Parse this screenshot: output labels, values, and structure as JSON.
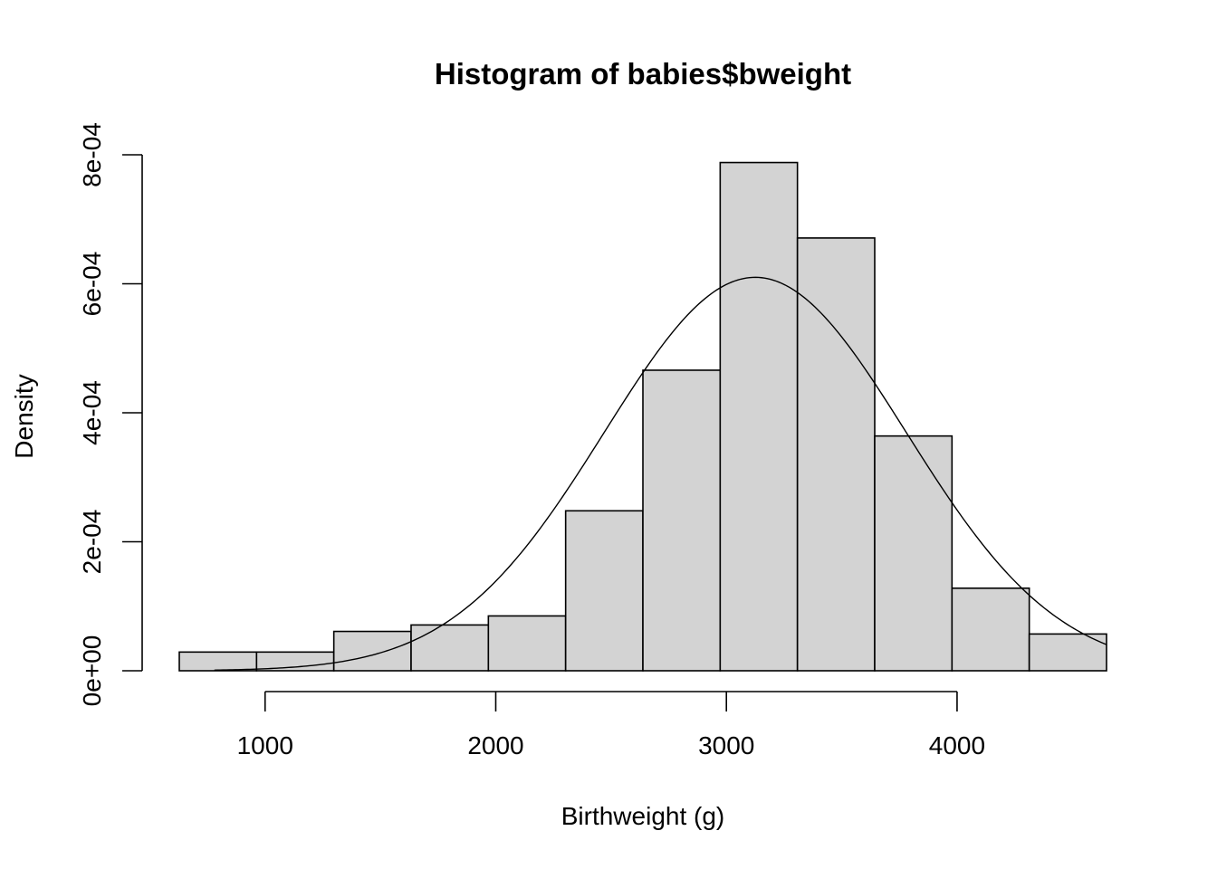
{
  "chart_data": {
    "type": "bar",
    "title": "Histogram of babies$bweight",
    "xlabel": "Birthweight (g)",
    "ylabel": "Density",
    "bin_edges": [
      628,
      963,
      1298,
      1633,
      1968,
      2303,
      2638,
      2973,
      3308,
      3643,
      3978,
      4313,
      4648
    ],
    "values": [
      2.9e-05,
      2.9e-05,
      6.1e-05,
      7.1e-05,
      8.5e-05,
      0.000248,
      0.000466,
      0.000788,
      0.000671,
      0.000364,
      0.000128,
      5.7e-05
    ],
    "density_curve": {
      "type": "line",
      "distribution": "normal",
      "mean": 3125,
      "sd": 654,
      "x_range": [
        780,
        4648
      ]
    },
    "xlim": [
      628,
      4648
    ],
    "ylim": [
      0,
      0.0008
    ],
    "x_ticks": [
      1000,
      2000,
      3000,
      4000
    ],
    "x_tick_labels": [
      "1000",
      "2000",
      "3000",
      "4000"
    ],
    "y_ticks": [
      0,
      0.0002,
      0.0004,
      0.0006,
      0.0008
    ],
    "y_tick_labels": [
      "0e+00",
      "2e-04",
      "4e-04",
      "6e-04",
      "8e-04"
    ],
    "grid": false,
    "bar_fill": "#d3d3d3",
    "bar_stroke": "#000000",
    "line_color": "#000000"
  }
}
